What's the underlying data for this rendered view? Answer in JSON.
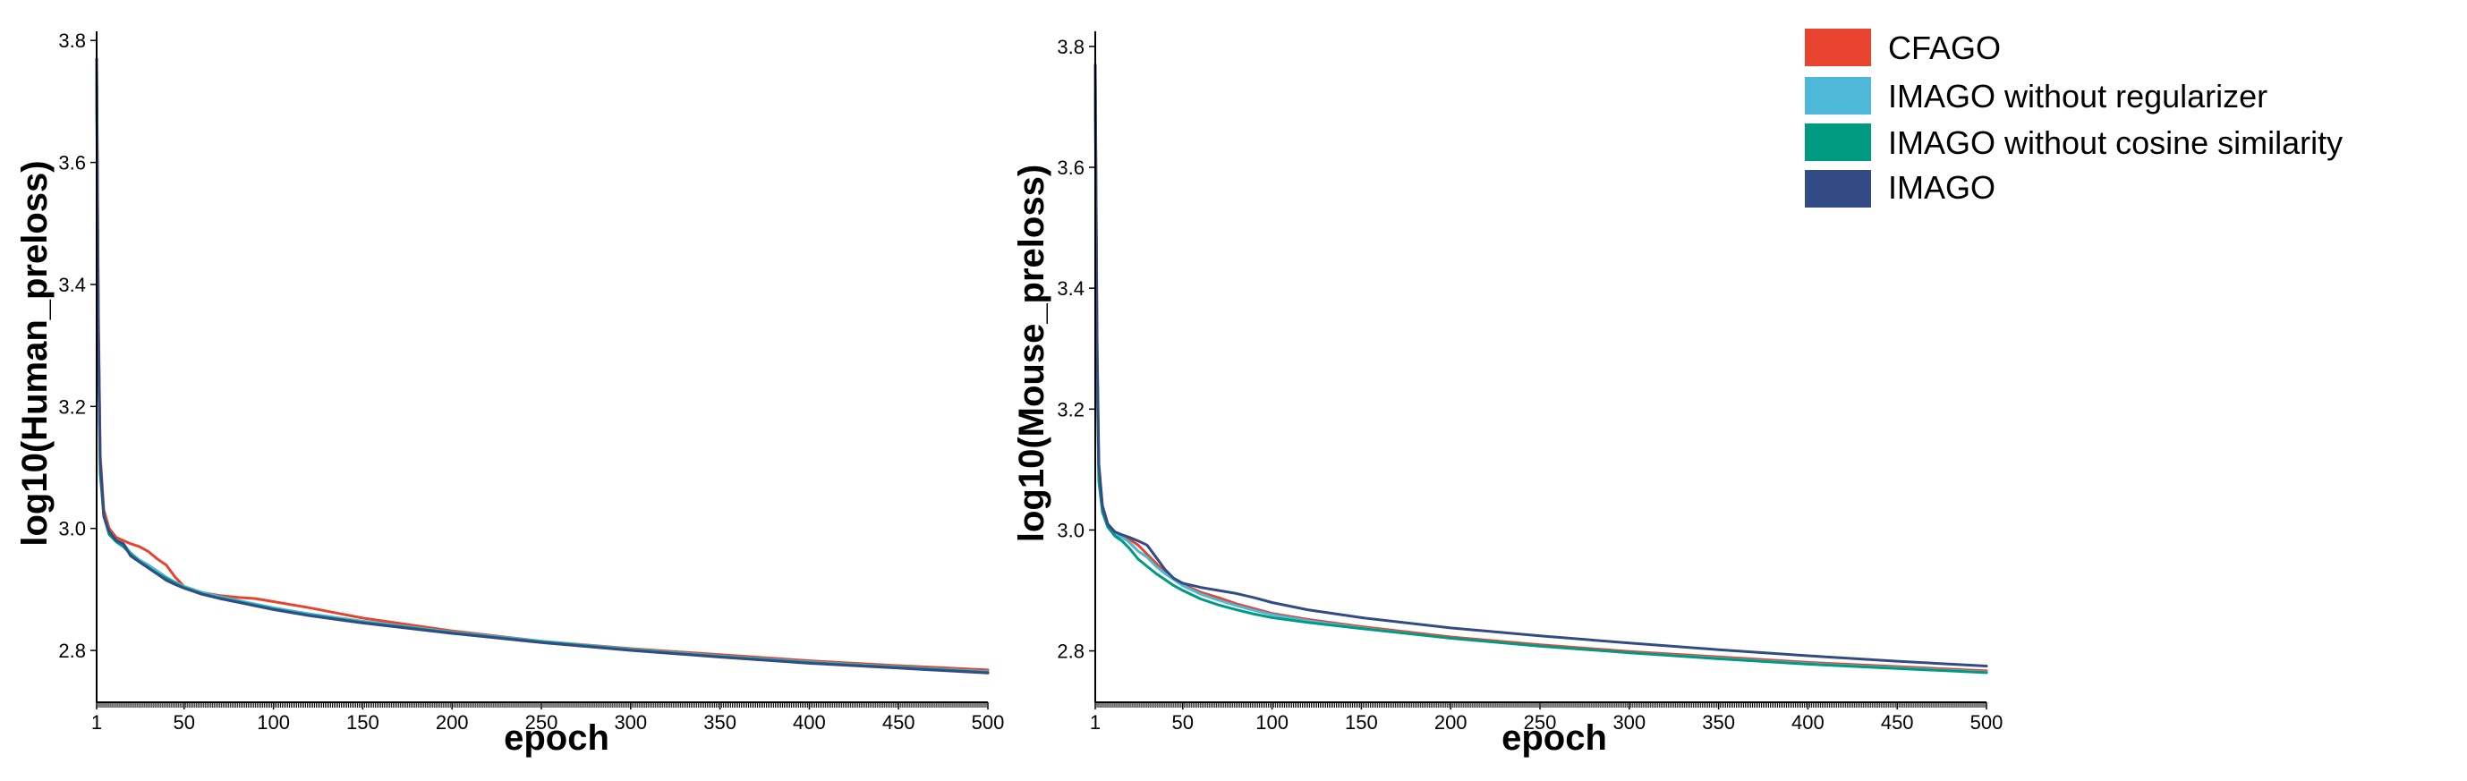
{
  "chart_data": [
    {
      "type": "line",
      "xlabel": "epoch",
      "ylabel": "log10(Human_preloss)",
      "xlim": [
        1,
        500
      ],
      "ylim": [
        2.715,
        3.815
      ],
      "x_ticks": [
        1,
        50,
        100,
        150,
        200,
        250,
        300,
        350,
        400,
        450,
        500
      ],
      "y_ticks": [
        2.8,
        3.0,
        3.2,
        3.4,
        3.6,
        3.8
      ],
      "grid": false,
      "series": [
        {
          "name": "CFAGO",
          "color": "#e8432e",
          "x": [
            1,
            2,
            3,
            5,
            8,
            12,
            16,
            20,
            25,
            30,
            35,
            40,
            45,
            50,
            60,
            70,
            80,
            90,
            100,
            120,
            150,
            200,
            250,
            300,
            350,
            400,
            450,
            500
          ],
          "y": [
            3.76,
            3.35,
            3.12,
            3.03,
            3.0,
            2.985,
            2.98,
            2.975,
            2.97,
            2.962,
            2.95,
            2.94,
            2.92,
            2.905,
            2.895,
            2.89,
            2.887,
            2.885,
            2.88,
            2.87,
            2.853,
            2.832,
            2.815,
            2.803,
            2.793,
            2.783,
            2.775,
            2.768
          ]
        },
        {
          "name": "IMAGO without regularizer",
          "color": "#4db8d8",
          "x": [
            1,
            2,
            3,
            5,
            8,
            12,
            16,
            20,
            25,
            30,
            35,
            40,
            45,
            50,
            60,
            70,
            80,
            90,
            100,
            120,
            150,
            200,
            250,
            300,
            350,
            400,
            450,
            500
          ],
          "y": [
            3.74,
            3.3,
            3.1,
            3.02,
            2.995,
            2.98,
            2.975,
            2.96,
            2.948,
            2.94,
            2.93,
            2.92,
            2.912,
            2.905,
            2.895,
            2.888,
            2.882,
            2.876,
            2.87,
            2.86,
            2.848,
            2.83,
            2.815,
            2.802,
            2.791,
            2.781,
            2.773,
            2.765
          ]
        },
        {
          "name": "IMAGO without cosine similarity",
          "color": "#009a80",
          "x": [
            1,
            2,
            3,
            5,
            8,
            12,
            16,
            20,
            25,
            30,
            35,
            40,
            45,
            50,
            60,
            70,
            80,
            90,
            100,
            120,
            150,
            200,
            250,
            300,
            350,
            400,
            450,
            500
          ],
          "y": [
            3.73,
            3.28,
            3.09,
            3.02,
            2.99,
            2.978,
            2.97,
            2.958,
            2.946,
            2.936,
            2.926,
            2.918,
            2.91,
            2.903,
            2.893,
            2.886,
            2.88,
            2.874,
            2.868,
            2.858,
            2.846,
            2.829,
            2.814,
            2.801,
            2.79,
            2.78,
            2.772,
            2.764
          ]
        },
        {
          "name": "IMAGO",
          "color": "#334b85",
          "x": [
            1,
            2,
            3,
            5,
            8,
            12,
            16,
            20,
            25,
            30,
            35,
            40,
            45,
            50,
            60,
            70,
            80,
            90,
            100,
            120,
            150,
            200,
            250,
            300,
            350,
            400,
            450,
            500
          ],
          "y": [
            3.77,
            3.32,
            3.11,
            3.02,
            2.995,
            2.98,
            2.975,
            2.955,
            2.945,
            2.935,
            2.925,
            2.915,
            2.908,
            2.902,
            2.892,
            2.885,
            2.879,
            2.873,
            2.867,
            2.857,
            2.845,
            2.828,
            2.813,
            2.8,
            2.789,
            2.779,
            2.771,
            2.763
          ]
        }
      ]
    },
    {
      "type": "line",
      "xlabel": "epoch",
      "ylabel": "log10(Mouse_preloss)",
      "xlim": [
        1,
        500
      ],
      "ylim": [
        2.715,
        3.825
      ],
      "x_ticks": [
        1,
        50,
        100,
        150,
        200,
        250,
        300,
        350,
        400,
        450,
        500
      ],
      "y_ticks": [
        2.8,
        3.0,
        3.2,
        3.4,
        3.6,
        3.8
      ],
      "grid": false,
      "series": [
        {
          "name": "CFAGO",
          "color": "#e8432e",
          "x": [
            1,
            2,
            3,
            5,
            8,
            12,
            16,
            20,
            25,
            30,
            35,
            40,
            45,
            50,
            60,
            70,
            80,
            90,
            100,
            120,
            150,
            200,
            250,
            300,
            350,
            400,
            450,
            500
          ],
          "y": [
            3.76,
            3.3,
            3.1,
            3.04,
            3.01,
            2.995,
            2.99,
            2.985,
            2.975,
            2.96,
            2.945,
            2.93,
            2.92,
            2.91,
            2.897,
            2.888,
            2.878,
            2.87,
            2.862,
            2.852,
            2.84,
            2.823,
            2.81,
            2.799,
            2.79,
            2.781,
            2.774,
            2.767
          ]
        },
        {
          "name": "IMAGO without regularizer",
          "color": "#4db8d8",
          "x": [
            1,
            2,
            3,
            5,
            8,
            12,
            16,
            20,
            25,
            30,
            35,
            40,
            45,
            50,
            60,
            70,
            80,
            90,
            100,
            120,
            150,
            200,
            250,
            300,
            350,
            400,
            450,
            500
          ],
          "y": [
            3.74,
            3.28,
            3.09,
            3.03,
            3.005,
            2.992,
            2.988,
            2.98,
            2.965,
            2.955,
            2.94,
            2.928,
            2.918,
            2.908,
            2.894,
            2.884,
            2.875,
            2.867,
            2.86,
            2.85,
            2.838,
            2.821,
            2.808,
            2.797,
            2.788,
            2.779,
            2.772,
            2.765
          ]
        },
        {
          "name": "IMAGO without cosine similarity",
          "color": "#009a80",
          "x": [
            1,
            2,
            3,
            5,
            8,
            12,
            16,
            20,
            25,
            30,
            35,
            40,
            45,
            50,
            60,
            70,
            80,
            90,
            100,
            120,
            150,
            200,
            250,
            300,
            350,
            400,
            450,
            500
          ],
          "y": [
            3.72,
            3.25,
            3.08,
            3.03,
            3.005,
            2.99,
            2.982,
            2.97,
            2.952,
            2.94,
            2.928,
            2.918,
            2.908,
            2.9,
            2.886,
            2.876,
            2.868,
            2.861,
            2.855,
            2.847,
            2.837,
            2.821,
            2.808,
            2.797,
            2.787,
            2.778,
            2.771,
            2.764
          ]
        },
        {
          "name": "IMAGO",
          "color": "#334b85",
          "x": [
            1,
            2,
            3,
            5,
            8,
            12,
            16,
            20,
            25,
            30,
            35,
            40,
            45,
            50,
            60,
            70,
            80,
            90,
            100,
            120,
            150,
            200,
            250,
            300,
            350,
            400,
            450,
            500
          ],
          "y": [
            3.77,
            3.32,
            3.11,
            3.04,
            3.01,
            2.997,
            2.992,
            2.988,
            2.982,
            2.975,
            2.955,
            2.935,
            2.92,
            2.912,
            2.905,
            2.9,
            2.895,
            2.888,
            2.88,
            2.868,
            2.855,
            2.838,
            2.825,
            2.813,
            2.802,
            2.792,
            2.783,
            2.775
          ]
        }
      ]
    }
  ],
  "legend": {
    "items": [
      {
        "label": "CFAGO",
        "color": "#e8432e"
      },
      {
        "label": "IMAGO without regularizer",
        "color": "#4db8d8"
      },
      {
        "label": "IMAGO without cosine similarity",
        "color": "#009a80"
      },
      {
        "label": "IMAGO",
        "color": "#334b85"
      }
    ]
  }
}
